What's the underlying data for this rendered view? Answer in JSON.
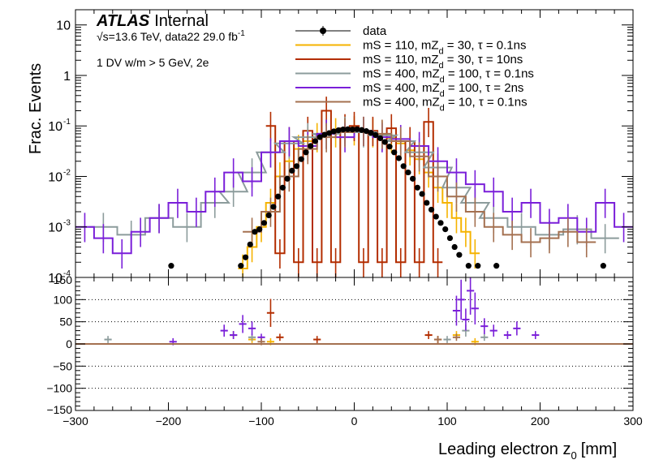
{
  "chart_data": [
    {
      "type": "histogram",
      "panel": "main",
      "xlabel": "Leading electron z",
      "xlabel_sub": "0",
      "xlabel_unit": "[mm]",
      "ylabel": "Frac. Events",
      "ylog": true,
      "xlim": [
        -300,
        300
      ],
      "ylim": [
        0.0001,
        20
      ],
      "x_ticks": [
        -300,
        -200,
        -100,
        0,
        100,
        200,
        300
      ],
      "y_ticks": [
        {
          "value": 0.0001,
          "label": "10",
          "sup": "-4"
        },
        {
          "value": 0.001,
          "label": "10",
          "sup": "-3"
        },
        {
          "value": 0.01,
          "label": "10",
          "sup": "-2"
        },
        {
          "value": 0.1,
          "label": "10",
          "sup": "-1"
        },
        {
          "value": 1,
          "label": "1",
          "sup": ""
        },
        {
          "value": 10,
          "label": "10",
          "sup": ""
        }
      ],
      "annotations": {
        "experiment": "ATLAS",
        "status": "Internal",
        "energy_prefix": "√s=13.6 TeV, data22 29.0 fb",
        "energy_sup": "-1",
        "selection": "1 DV w/m > 5 GeV, 2e"
      },
      "legend_position": "top-right",
      "series": [
        {
          "name": "data",
          "style": "points",
          "color": "#000000",
          "x": [
            -197,
            -122,
            -117,
            -112,
            -107,
            -102,
            -97,
            -92,
            -87,
            -82,
            -77,
            -72,
            -67,
            -62,
            -57,
            -52,
            -47,
            -42,
            -37,
            -32,
            -27,
            -22,
            -17,
            -12,
            -7,
            -2,
            3,
            8,
            13,
            18,
            23,
            28,
            33,
            38,
            43,
            48,
            53,
            58,
            63,
            68,
            73,
            78,
            83,
            88,
            93,
            98,
            103,
            108,
            113,
            123,
            133,
            153,
            268
          ],
          "y": [
            0.00017,
            0.00017,
            0.00025,
            0.00045,
            0.0008,
            0.0009,
            0.0012,
            0.0017,
            0.0025,
            0.004,
            0.006,
            0.009,
            0.013,
            0.016,
            0.022,
            0.03,
            0.04,
            0.05,
            0.06,
            0.067,
            0.072,
            0.078,
            0.082,
            0.085,
            0.086,
            0.085,
            0.086,
            0.083,
            0.079,
            0.073,
            0.066,
            0.057,
            0.048,
            0.039,
            0.03,
            0.023,
            0.016,
            0.012,
            0.009,
            0.006,
            0.0045,
            0.003,
            0.0022,
            0.0016,
            0.0012,
            0.0009,
            0.0006,
            0.0004,
            0.00028,
            0.00017,
            0.00017,
            0.00017,
            0.00017
          ]
        },
        {
          "name": "mS = 110, mZ_d = 30, τ = 0.1ns",
          "name_main": "mS = 110, mZ",
          "name_sub": "d",
          "name_rest": " = 30, τ = 0.1ns",
          "style": "step",
          "color": "#f5b300",
          "x": [
            -120,
            -110,
            -100,
            -90,
            -80,
            -70,
            -60,
            -50,
            -40,
            -30,
            -20,
            -10,
            0,
            10,
            20,
            30,
            40,
            50,
            60,
            70,
            80,
            90,
            100,
            110,
            120,
            130
          ],
          "y": [
            0.00015,
            0.0004,
            0.001,
            0.003,
            0.01,
            0.02,
            0.035,
            0.05,
            0.06,
            0.07,
            0.075,
            0.08,
            0.082,
            0.08,
            0.075,
            0.068,
            0.058,
            0.045,
            0.033,
            0.022,
            0.012,
            0.006,
            0.003,
            0.0015,
            0.0008,
            0.0003
          ]
        },
        {
          "name": "mS = 110, mZ_d = 30, τ = 10ns",
          "name_main": "mS = 110, mZ",
          "name_sub": "d",
          "name_rest": " = 30, τ = 10ns",
          "style": "step",
          "color": "#b32d00",
          "x": [
            -90,
            -80,
            -70,
            -60,
            -50,
            -40,
            -30,
            -20,
            -10,
            0,
            10,
            20,
            30,
            40,
            50,
            60,
            70,
            80,
            90
          ],
          "y": [
            0.1,
            0.0003,
            0.05,
            0.0002,
            0.08,
            0.0002,
            0.2,
            0.0002,
            0.09,
            0.1,
            0.0002,
            0.08,
            0.0002,
            0.09,
            0.0002,
            0.05,
            0.0002,
            0.12,
            0.0002
          ]
        },
        {
          "name": "mS = 400, mZ_d = 100, τ = 0.1ns",
          "name_main": "mS = 400, mZ",
          "name_sub": "d",
          "name_rest": " = 100, τ = 0.1ns",
          "style": "step",
          "color": "#8c9c9c",
          "x": [
            -270,
            -240,
            -210,
            -180,
            -150,
            -130,
            -110,
            -90,
            -70,
            -50,
            -30,
            -10,
            10,
            30,
            50,
            70,
            90,
            110,
            130,
            150,
            180,
            210,
            240,
            270
          ],
          "y": [
            0.001,
            0.0007,
            0.0015,
            0.001,
            0.003,
            0.005,
            0.012,
            0.03,
            0.045,
            0.06,
            0.07,
            0.08,
            0.075,
            0.065,
            0.05,
            0.03,
            0.015,
            0.006,
            0.003,
            0.0015,
            0.001,
            0.0007,
            0.0009,
            0.0006
          ]
        },
        {
          "name": "mS = 400, mZ_d = 100, τ = 2ns",
          "name_main": "mS = 400, mZ",
          "name_sub": "d",
          "name_rest": " = 100, τ = 2ns",
          "style": "step",
          "color": "#7a1fd9",
          "x": [
            -290,
            -270,
            -250,
            -230,
            -210,
            -190,
            -170,
            -150,
            -130,
            -110,
            -90,
            -70,
            -50,
            -30,
            -10,
            10,
            30,
            50,
            70,
            90,
            110,
            130,
            150,
            170,
            190,
            210,
            230,
            250,
            270,
            290
          ],
          "y": [
            0.001,
            0.0006,
            0.0003,
            0.0008,
            0.0015,
            0.003,
            0.002,
            0.005,
            0.012,
            0.008,
            0.03,
            0.05,
            0.04,
            0.07,
            0.06,
            0.08,
            0.06,
            0.055,
            0.04,
            0.02,
            0.012,
            0.007,
            0.005,
            0.002,
            0.003,
            0.0012,
            0.0015,
            0.0008,
            0.003,
            0.001
          ]
        },
        {
          "name": "mS = 400, mZ_d = 10, τ = 0.1ns",
          "name_main": "mS = 400, mZ",
          "name_sub": "d",
          "name_rest": " = 10, τ = 0.1ns",
          "style": "step",
          "color": "#a47050",
          "x": [
            -110,
            -90,
            -70,
            -50,
            -30,
            -10,
            10,
            30,
            50,
            70,
            90,
            110,
            130,
            150,
            170,
            190,
            210,
            230,
            250
          ],
          "y": [
            0.0008,
            0.002,
            0.01,
            0.035,
            0.06,
            0.075,
            0.08,
            0.07,
            0.05,
            0.025,
            0.01,
            0.004,
            0.002,
            0.001,
            0.0007,
            0.0005,
            0.0006,
            0.0008,
            0.0005
          ]
        }
      ]
    },
    {
      "type": "histogram",
      "panel": "ratio",
      "xlim": [
        -300,
        300
      ],
      "ylim": [
        -150,
        150
      ],
      "x_ticks": [
        -300,
        -200,
        -100,
        0,
        100,
        200,
        300
      ],
      "y_ticks": [
        -100,
        -50,
        0,
        50,
        100
      ],
      "y_tick_labels": [
        "−100",
        "−50",
        "0",
        "50",
        "100"
      ],
      "y_top_label": "150",
      "y_bottom_label": "−150",
      "grid": "dotted horizontal",
      "series": [
        {
          "color": "#f5b300",
          "x": [
            -130,
            -110,
            -90,
            90,
            110,
            130
          ],
          "y": [
            20,
            10,
            5,
            10,
            20,
            5
          ]
        },
        {
          "color": "#b32d00",
          "x": [
            -90,
            -80,
            -40,
            80,
            90
          ],
          "y": [
            70,
            15,
            10,
            20,
            10
          ]
        },
        {
          "color": "#8c9c9c",
          "x": [
            -265,
            -130,
            -110,
            100,
            120,
            140
          ],
          "y": [
            10,
            20,
            15,
            10,
            30,
            15
          ]
        },
        {
          "color": "#7a1fd9",
          "x": [
            -195,
            -140,
            -130,
            -120,
            -110,
            -100,
            110,
            115,
            120,
            125,
            130,
            140,
            150,
            165,
            175,
            195
          ],
          "y": [
            5,
            30,
            20,
            45,
            35,
            15,
            75,
            100,
            55,
            120,
            80,
            40,
            30,
            20,
            35,
            20
          ]
        },
        {
          "color": "#a47050",
          "x": [
            -100,
            90,
            110
          ],
          "y": [
            5,
            10,
            15
          ]
        }
      ]
    }
  ]
}
